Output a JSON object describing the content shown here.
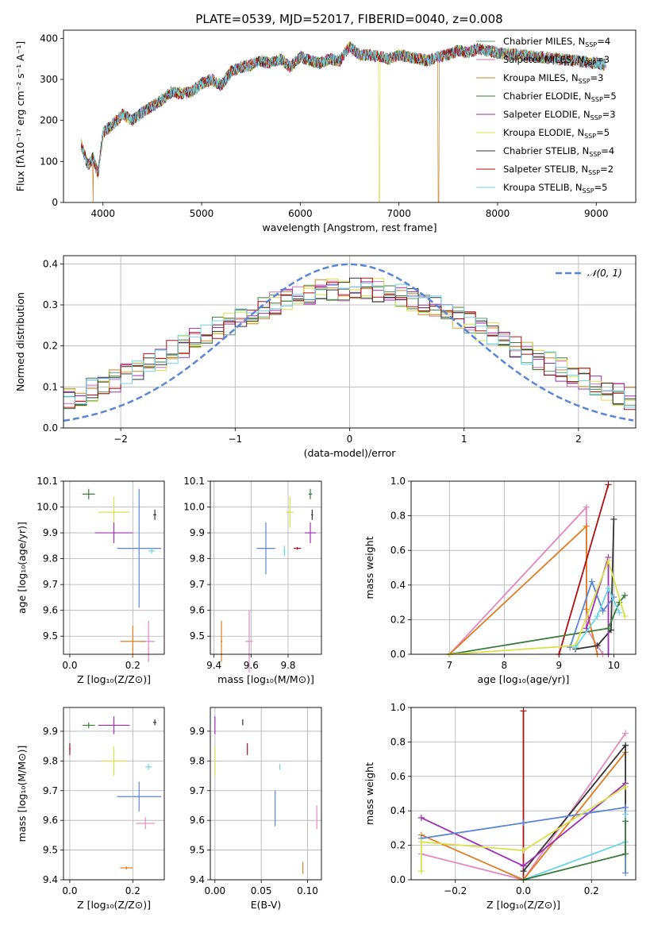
{
  "figure": {
    "title": "PLATE=0539, MJD=52017, FIBERID=0040, z=0.008"
  },
  "legend_models": [
    {
      "label": "Chabrier MILES, N",
      "sub": "SSP",
      "n": "=4",
      "color": "#5a9a6e"
    },
    {
      "label": "Salpeter MILES, N",
      "sub": "SSP",
      "n": "=3",
      "color": "#cf6fb5"
    },
    {
      "label": "Kroupa MILES, N",
      "sub": "SSP",
      "n": "=3",
      "color": "#c9862a"
    },
    {
      "label": "Chabrier ELODIE, N",
      "sub": "SSP",
      "n": "=5",
      "color": "#3d7a3d"
    },
    {
      "label": "Salpeter ELODIE, N",
      "sub": "SSP",
      "n": "=3",
      "color": "#9b30b5"
    },
    {
      "label": "Kroupa ELODIE, N",
      "sub": "SSP",
      "n": "=5",
      "color": "#d8e04a"
    },
    {
      "label": "Chabrier STELIB, N",
      "sub": "SSP",
      "n": "=4",
      "color": "#333333"
    },
    {
      "label": "Salpeter STELIB, N",
      "sub": "SSP",
      "n": "=2",
      "color": "#b01010"
    },
    {
      "label": "Kroupa STELIB, N",
      "sub": "SSP",
      "n": "=5",
      "color": "#6fd4e4"
    }
  ],
  "chart_data": [
    {
      "type": "line",
      "xlabel": "wavelength [Angstrom, rest frame]",
      "ylabel": "Flux [fλ10⁻¹⁷ erg cm⁻² s⁻¹ A⁻¹]",
      "xlim": [
        3600,
        9400
      ],
      "ylim": [
        0,
        420
      ],
      "xticks": [
        "4000",
        "5000",
        "6000",
        "7000",
        "8000",
        "9000"
      ],
      "yticks": [
        "0",
        "100",
        "200",
        "300",
        "400"
      ],
      "spectrum_envelope": {
        "x": [
          3780,
          3850,
          3900,
          3950,
          4000,
          4100,
          4200,
          4300,
          4400,
          4500,
          4600,
          4700,
          4800,
          4900,
          5000,
          5100,
          5200,
          5300,
          5400,
          5500,
          5600,
          5700,
          5800,
          5900,
          6000,
          6100,
          6200,
          6300,
          6400,
          6500,
          6600,
          6700,
          6800,
          6900,
          7000,
          7100,
          7200,
          7300,
          7400,
          7500,
          7600,
          7700,
          7800,
          7900,
          8000,
          8200,
          8400,
          8600,
          8800,
          9000,
          9100
        ],
        "y": [
          140,
          90,
          110,
          70,
          170,
          190,
          215,
          200,
          220,
          235,
          250,
          270,
          265,
          270,
          290,
          300,
          285,
          320,
          330,
          335,
          345,
          340,
          350,
          330,
          355,
          345,
          340,
          350,
          345,
          380,
          360,
          360,
          355,
          350,
          360,
          355,
          350,
          345,
          355,
          360,
          370,
          365,
          375,
          370,
          365,
          360,
          355,
          350,
          345,
          340,
          335
        ]
      }
    },
    {
      "type": "line",
      "xlabel": "(data-model)/error",
      "ylabel": "Normed distribution",
      "xlim": [
        -2.5,
        2.5
      ],
      "ylim": [
        0,
        0.42
      ],
      "xticks": [
        "−2",
        "−1",
        "0",
        "1",
        "2"
      ],
      "yticks": [
        "0.0",
        "0.1",
        "0.2",
        "0.3",
        "0.4"
      ],
      "legend": "𝒩(0, 1)",
      "gaussian_color": "#5b86d6"
    },
    {
      "type": "scatter",
      "xlabel": "Z [log₁₀(Z/Z⊙)]",
      "ylabel": "age  [log₁₀(age/yr)]",
      "xlim": [
        -0.02,
        0.3
      ],
      "ylim": [
        9.43,
        10.1
      ],
      "xticks": [
        "0.0",
        "0.2"
      ],
      "yticks": [
        "9.5",
        "9.6",
        "9.7",
        "9.8",
        "9.9",
        "10.0",
        "10.1"
      ],
      "points": [
        {
          "x": 0.06,
          "y": 10.05,
          "xerr": 0.02,
          "yerr": 0.02,
          "color": "#3d7a3d"
        },
        {
          "x": 0.27,
          "y": 9.97,
          "xerr": 0.005,
          "yerr": 0.02,
          "color": "#333333"
        },
        {
          "x": 0.14,
          "y": 9.98,
          "xerr": 0.05,
          "yerr": 0.06,
          "color": "#d8e04a"
        },
        {
          "x": 0.14,
          "y": 9.9,
          "xerr": 0.06,
          "yerr": 0.04,
          "color": "#9b30b5"
        },
        {
          "x": 0.22,
          "y": 9.84,
          "xerr": 0.07,
          "yerr": 0.23,
          "color": "#5b86d6"
        },
        {
          "x": 0.26,
          "y": 9.83,
          "xerr": 0.01,
          "yerr": 0.01,
          "color": "#6fd4e4"
        },
        {
          "x": 0.25,
          "y": 9.48,
          "xerr": 0.02,
          "yerr": 0.08,
          "color": "#e28ac0"
        },
        {
          "x": 0.2,
          "y": 9.48,
          "xerr": 0.04,
          "yerr": 0.06,
          "color": "#e07b20"
        }
      ]
    },
    {
      "type": "scatter",
      "xlabel": "mass [log₁₀(M/M⊙)]",
      "ylabel": "",
      "xlim": [
        9.38,
        9.98
      ],
      "ylim": [
        9.43,
        10.1
      ],
      "xticks": [
        "9.4",
        "9.6",
        "9.8"
      ],
      "yticks": [
        "9.5",
        "9.6",
        "9.7",
        "9.8",
        "9.9",
        "10.0",
        "10.1"
      ],
      "points": [
        {
          "x": 9.92,
          "y": 10.05,
          "xerr": 0.01,
          "yerr": 0.02,
          "color": "#3d7a3d"
        },
        {
          "x": 9.93,
          "y": 9.97,
          "xerr": 0.005,
          "yerr": 0.02,
          "color": "#333333"
        },
        {
          "x": 9.81,
          "y": 9.98,
          "xerr": 0.02,
          "yerr": 0.06,
          "color": "#d8e04a"
        },
        {
          "x": 9.92,
          "y": 9.9,
          "xerr": 0.03,
          "yerr": 0.04,
          "color": "#9b30b5"
        },
        {
          "x": 9.85,
          "y": 9.84,
          "xerr": 0.02,
          "yerr": 0.005,
          "color": "#b01010"
        },
        {
          "x": 9.68,
          "y": 9.84,
          "xerr": 0.05,
          "yerr": 0.1,
          "color": "#5b86d6"
        },
        {
          "x": 9.78,
          "y": 9.83,
          "xerr": 0.005,
          "yerr": 0.02,
          "color": "#6fd4e4"
        },
        {
          "x": 9.59,
          "y": 9.48,
          "xerr": 0.02,
          "yerr": 0.12,
          "color": "#e28ac0"
        },
        {
          "x": 9.44,
          "y": 9.48,
          "xerr": 0.005,
          "yerr": 0.08,
          "color": "#e07b20"
        }
      ]
    },
    {
      "type": "line",
      "xlabel": "age  [log₁₀(age/yr)]",
      "ylabel": "mass weight",
      "xlim": [
        6.3,
        10.4
      ],
      "ylim": [
        0,
        1.0
      ],
      "xticks": [
        "7",
        "8",
        "9",
        "10"
      ],
      "yticks": [
        "0.0",
        "0.2",
        "0.4",
        "0.6",
        "0.8",
        "1.0"
      ],
      "series": [
        {
          "color": "#e28ac0",
          "x": [
            7.0,
            9.5,
            9.5,
            9.8
          ],
          "y": [
            0.0,
            0.85,
            0.15,
            0.0
          ]
        },
        {
          "color": "#e07b20",
          "x": [
            7.0,
            9.5,
            9.5,
            9.7
          ],
          "y": [
            0.0,
            0.74,
            0.26,
            0.0
          ]
        },
        {
          "color": "#b01010",
          "x": [
            9.0,
            9.9
          ],
          "y": [
            0.0,
            0.98
          ]
        },
        {
          "color": "#333333",
          "x": [
            9.3,
            9.7,
            9.95,
            10.0
          ],
          "y": [
            0.03,
            0.05,
            0.14,
            0.78
          ]
        },
        {
          "color": "#9b30b5",
          "x": [
            9.5,
            9.9,
            9.9
          ],
          "y": [
            0.15,
            0.56,
            0.0
          ]
        },
        {
          "color": "#5b86d6",
          "x": [
            9.2,
            9.6,
            9.8,
            10.0
          ],
          "y": [
            0.04,
            0.42,
            0.25,
            0.33
          ]
        },
        {
          "color": "#3d7a3d",
          "x": [
            7.0,
            9.9,
            10.1,
            10.2
          ],
          "y": [
            0.0,
            0.15,
            0.3,
            0.34
          ]
        },
        {
          "color": "#d8e04a",
          "x": [
            7.0,
            9.3,
            9.9,
            10.2
          ],
          "y": [
            0.0,
            0.05,
            0.54,
            0.22
          ]
        },
        {
          "color": "#6fd4e4",
          "x": [
            9.3,
            9.7,
            9.9,
            10.1
          ],
          "y": [
            0.04,
            0.22,
            0.38,
            0.24
          ]
        }
      ]
    },
    {
      "type": "scatter",
      "xlabel": "Z [log₁₀(Z/Z⊙)]",
      "ylabel": "mass [log₁₀(M/M⊙)]",
      "xlim": [
        -0.02,
        0.3
      ],
      "ylim": [
        9.4,
        9.98
      ],
      "xticks": [
        "0.0",
        "0.2"
      ],
      "yticks": [
        "9.4",
        "9.5",
        "9.6",
        "9.7",
        "9.8",
        "9.9"
      ],
      "points": [
        {
          "x": 0.06,
          "y": 9.92,
          "xerr": 0.02,
          "yerr": 0.01,
          "color": "#3d7a3d"
        },
        {
          "x": 0.27,
          "y": 9.93,
          "xerr": 0.005,
          "yerr": 0.01,
          "color": "#333333"
        },
        {
          "x": 0.14,
          "y": 9.92,
          "xerr": 0.05,
          "yerr": 0.03,
          "color": "#9b30b5"
        },
        {
          "x": 0.14,
          "y": 9.8,
          "xerr": 0.04,
          "yerr": 0.05,
          "color": "#d8e04a"
        },
        {
          "x": 0.0,
          "y": 9.84,
          "xerr": 0.002,
          "yerr": 0.02,
          "color": "#b01010"
        },
        {
          "x": 0.25,
          "y": 9.78,
          "xerr": 0.01,
          "yerr": 0.01,
          "color": "#6fd4e4"
        },
        {
          "x": 0.22,
          "y": 9.68,
          "xerr": 0.07,
          "yerr": 0.05,
          "color": "#5b86d6"
        },
        {
          "x": 0.24,
          "y": 9.59,
          "xerr": 0.03,
          "yerr": 0.02,
          "color": "#e28ac0"
        },
        {
          "x": 0.18,
          "y": 9.44,
          "xerr": 0.02,
          "yerr": 0.005,
          "color": "#e07b20"
        }
      ]
    },
    {
      "type": "scatter",
      "xlabel": "E(B-V)",
      "ylabel": "",
      "xlim": [
        -0.005,
        0.115
      ],
      "ylim": [
        9.4,
        9.98
      ],
      "xticks": [
        "0.00",
        "0.05",
        "0.10"
      ],
      "yticks": [
        "9.4",
        "9.5",
        "9.6",
        "9.7",
        "9.8",
        "9.9"
      ],
      "points": [
        {
          "x": 0.0,
          "y": 9.92,
          "xerr": 0.0,
          "yerr": 0.03,
          "color": "#9b30b5"
        },
        {
          "x": 0.0,
          "y": 9.8,
          "xerr": 0.0,
          "yerr": 0.05,
          "color": "#d8e04a"
        },
        {
          "x": 0.03,
          "y": 9.93,
          "xerr": 0.0,
          "yerr": 0.01,
          "color": "#333333"
        },
        {
          "x": 0.035,
          "y": 9.84,
          "xerr": 0.0,
          "yerr": 0.02,
          "color": "#b01010"
        },
        {
          "x": 0.07,
          "y": 9.78,
          "xerr": 0.0,
          "yerr": 0.01,
          "color": "#6fd4e4"
        },
        {
          "x": 0.065,
          "y": 9.64,
          "xerr": 0.0,
          "yerr": 0.06,
          "color": "#5b86d6"
        },
        {
          "x": 0.11,
          "y": 9.61,
          "xerr": 0.0,
          "yerr": 0.04,
          "color": "#e28ac0"
        },
        {
          "x": 0.095,
          "y": 9.44,
          "xerr": 0.0,
          "yerr": 0.02,
          "color": "#e07b20"
        }
      ]
    },
    {
      "type": "line",
      "xlabel": "Z [log₁₀(Z/Z⊙)]",
      "ylabel": "mass weight",
      "xlim": [
        -0.33,
        0.33
      ],
      "ylim": [
        0,
        1.0
      ],
      "xticks": [
        "−0.2",
        "0.0",
        "0.2"
      ],
      "yticks": [
        "0.0",
        "0.2",
        "0.4",
        "0.6",
        "0.8",
        "1.0"
      ],
      "series": [
        {
          "color": "#b01010",
          "x": [
            0.0,
            0.0
          ],
          "y": [
            0.0,
            0.98
          ]
        },
        {
          "color": "#e28ac0",
          "x": [
            -0.3,
            0.0,
            0.3
          ],
          "y": [
            0.15,
            0.0,
            0.85
          ]
        },
        {
          "color": "#e07b20",
          "x": [
            -0.3,
            0.0,
            0.3
          ],
          "y": [
            0.26,
            0.0,
            0.74
          ]
        },
        {
          "color": "#333333",
          "x": [
            0.0,
            0.3,
            0.3
          ],
          "y": [
            0.05,
            0.78,
            0.15
          ]
        },
        {
          "color": "#9b30b5",
          "x": [
            -0.3,
            0.0,
            0.3
          ],
          "y": [
            0.36,
            0.08,
            0.56
          ]
        },
        {
          "color": "#5b86d6",
          "x": [
            -0.3,
            0.0,
            0.3,
            0.3
          ],
          "y": [
            0.24,
            0.33,
            0.42,
            0.04
          ]
        },
        {
          "color": "#d8e04a",
          "x": [
            -0.3,
            -0.3,
            0.0,
            0.3
          ],
          "y": [
            0.05,
            0.22,
            0.17,
            0.54
          ]
        },
        {
          "color": "#6fd4e4",
          "x": [
            0.0,
            0.3,
            0.3
          ],
          "y": [
            0.0,
            0.22,
            0.38
          ]
        },
        {
          "color": "#3d7a3d",
          "x": [
            0.0,
            0.3,
            0.3
          ],
          "y": [
            0.0,
            0.15,
            0.34
          ]
        }
      ]
    }
  ]
}
